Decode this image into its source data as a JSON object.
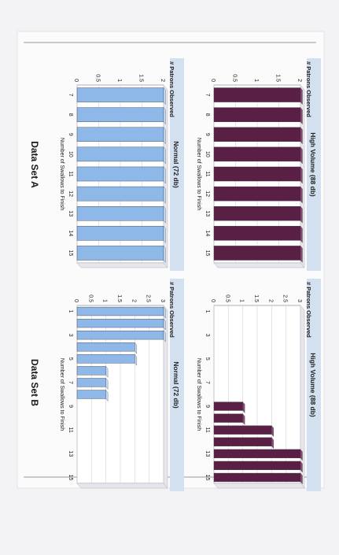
{
  "page": {
    "label_a": "Data Set A",
    "label_b": "Data Set B"
  },
  "colors": {
    "loud_bar": "#5a1f45",
    "loud_bar_top": "#8a4a76",
    "normal_bar": "#8db8e8",
    "normal_bar_top": "#c8ddf4",
    "title_bar": "#d3e0ef",
    "plot_bg": "#ffffff",
    "plot_wall": "#e6e6ec"
  },
  "chart_data": [
    {
      "id": "a_high",
      "type": "bar",
      "title": "High Volume (88 db)",
      "xlabel": "Number of Swallows to Finish",
      "ylabel": "# Patrons Observed",
      "categories": [
        "7",
        "8",
        "9",
        "10",
        "11",
        "12",
        "13",
        "14",
        "15"
      ],
      "values": [
        2,
        2,
        2,
        2,
        2,
        2,
        2,
        2,
        2
      ],
      "ylim": [
        0,
        2
      ],
      "yticks": [
        "0",
        "0.5",
        "1",
        "1.5",
        "2"
      ],
      "series_color": "loud_bar"
    },
    {
      "id": "a_normal",
      "type": "bar",
      "title": "Normal (72 db)",
      "xlabel": "Number of Swallows to Finish",
      "ylabel": "# Patrons Observed",
      "categories": [
        "7",
        "8",
        "9",
        "10",
        "11",
        "12",
        "13",
        "14",
        "15"
      ],
      "values": [
        2,
        2,
        2,
        2,
        2,
        2,
        2,
        2,
        2
      ],
      "ylim": [
        0,
        2
      ],
      "yticks": [
        "0",
        "0.5",
        "1",
        "1.5",
        "2"
      ],
      "series_color": "normal_bar"
    },
    {
      "id": "b_high",
      "type": "bar",
      "title": "High Volume (88 db)",
      "xlabel": "Number of Swallows to Finish",
      "ylabel": "# Patrons Observed",
      "categories": [
        "1",
        "2",
        "3",
        "4",
        "5",
        "6",
        "7",
        "8",
        "9",
        "10",
        "11",
        "12",
        "13",
        "14",
        "15"
      ],
      "x_tick_labels": [
        "1",
        "3",
        "5",
        "7",
        "9",
        "11",
        "13",
        "15"
      ],
      "values": [
        0,
        0,
        0,
        0,
        0,
        0,
        0,
        0,
        1,
        1,
        2,
        2,
        3,
        3,
        3
      ],
      "ylim": [
        0,
        3
      ],
      "yticks": [
        "0",
        "0.5",
        "1",
        "1.5",
        "2",
        "2.5",
        "3"
      ],
      "series_color": "loud_bar"
    },
    {
      "id": "b_normal",
      "type": "bar",
      "title": "Normal (72 db)",
      "xlabel": "Number of Swallows to Finish",
      "ylabel": "# Patrons Observed",
      "categories": [
        "1",
        "2",
        "3",
        "4",
        "5",
        "6",
        "7",
        "8",
        "9",
        "10",
        "11",
        "12",
        "13",
        "14",
        "15"
      ],
      "x_tick_labels": [
        "1",
        "3",
        "5",
        "7",
        "9",
        "11",
        "13",
        "15"
      ],
      "values": [
        3,
        3,
        3,
        2,
        2,
        1,
        1,
        1,
        0,
        0,
        0,
        0,
        0,
        0,
        0
      ],
      "ylim": [
        0,
        3
      ],
      "yticks": [
        "0",
        "0.5",
        "1",
        "1.5",
        "2",
        "2.5",
        "3"
      ],
      "series_color": "normal_bar"
    }
  ]
}
